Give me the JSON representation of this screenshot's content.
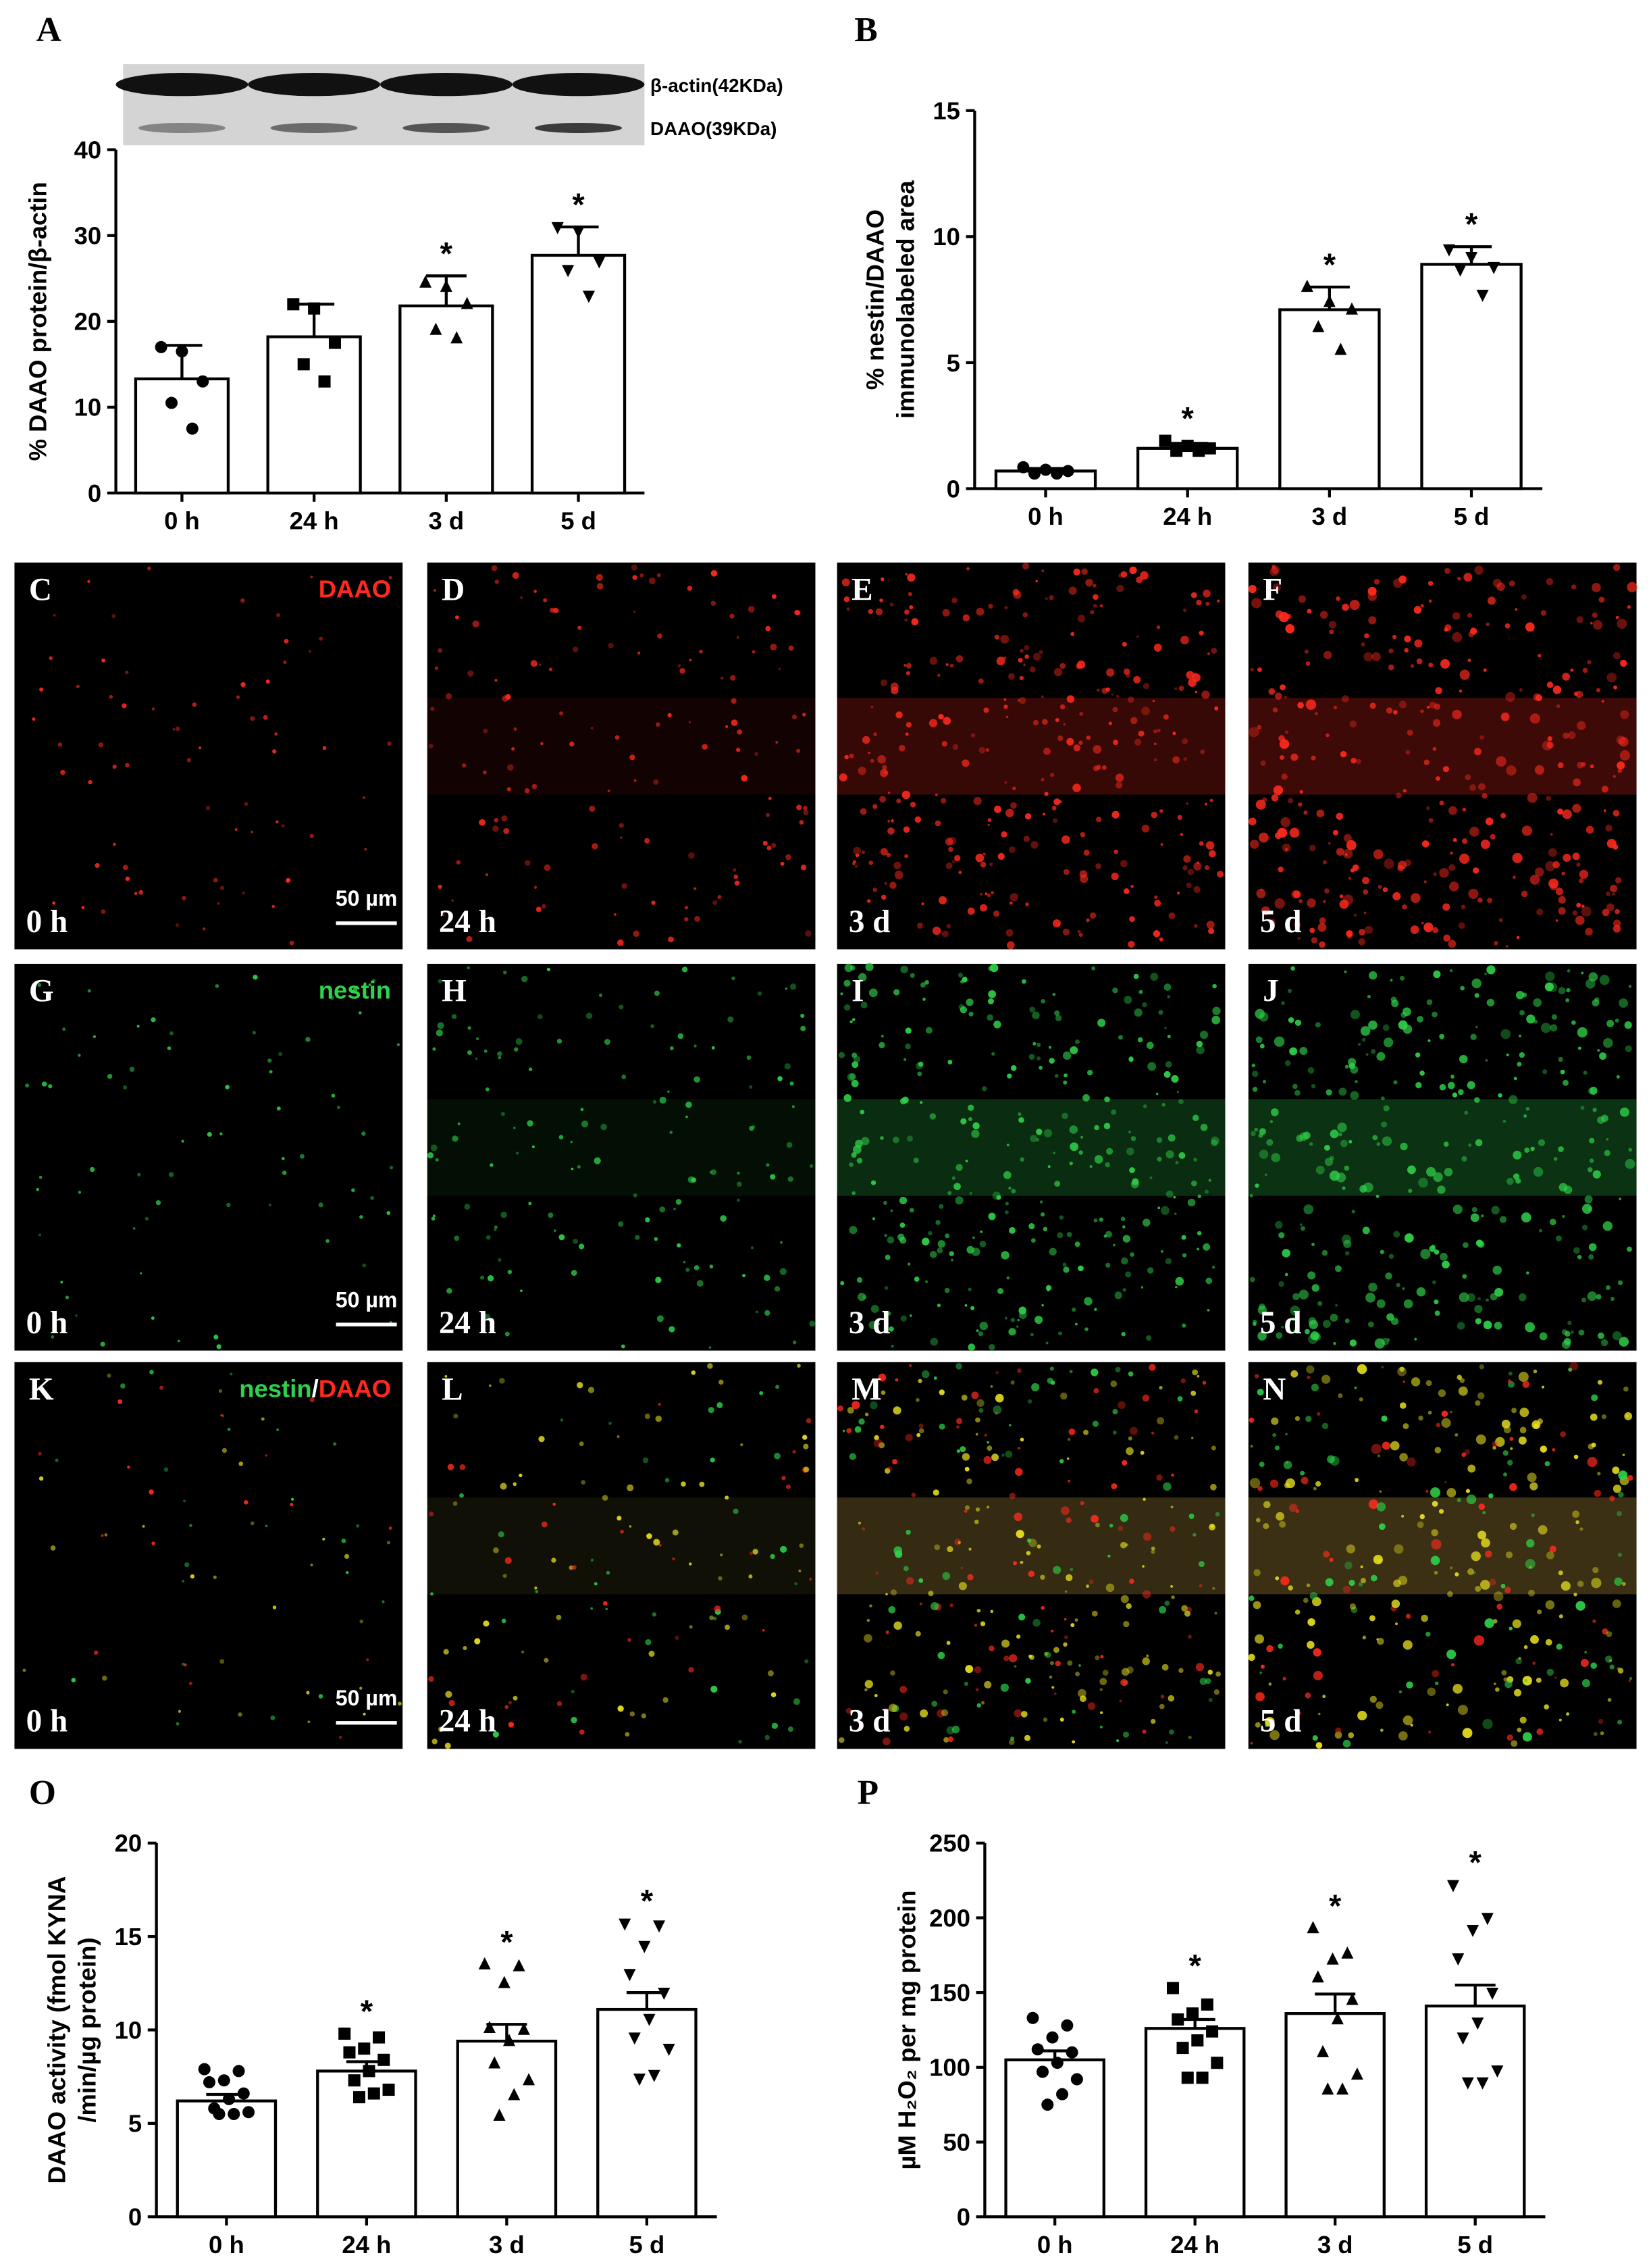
{
  "chart_data": [
    {
      "type": "bar",
      "panel": "A",
      "y_label": [
        "% DAAO protein/β-actin"
      ],
      "blot_labels": [
        "β-actin(42KDa)",
        "DAAO(39KDa)"
      ],
      "categories": [
        "0 h",
        "24 h",
        "3 d",
        "5 d"
      ],
      "values": [
        13.3,
        18.2,
        21.8,
        27.7
      ],
      "errors": [
        3.9,
        3.8,
        3.5,
        3.3
      ],
      "markers": [
        "circle",
        "square",
        "triangle-up",
        "triangle-down"
      ],
      "points": [
        [
          17,
          16.5,
          13,
          10.5,
          7.5
        ],
        [
          22,
          21.5,
          17.5,
          15,
          13
        ],
        [
          24.5,
          24,
          22,
          19,
          18
        ],
        [
          31,
          30.5,
          27,
          26,
          23
        ]
      ],
      "significance": [
        null,
        null,
        "*",
        "*"
      ],
      "ylim": [
        0,
        40
      ],
      "yticks": [
        0,
        10,
        20,
        30,
        40
      ]
    },
    {
      "type": "bar",
      "panel": "B",
      "y_label": [
        "% nestin/DAAO",
        "immunolabeled area"
      ],
      "categories": [
        "0 h",
        "24 h",
        "3 d",
        "5 d"
      ],
      "values": [
        0.7,
        1.6,
        7.1,
        8.9
      ],
      "errors": [
        0.1,
        0.2,
        0.9,
        0.7
      ],
      "markers": [
        "circle",
        "square",
        "triangle-up",
        "triangle-down"
      ],
      "points": [
        [
          0.85,
          0.75,
          0.7,
          0.6,
          0.6
        ],
        [
          1.9,
          1.7,
          1.6,
          1.5,
          1.5
        ],
        [
          8,
          7.4,
          7.1,
          6.4,
          5.5
        ],
        [
          9.5,
          9.2,
          8.8,
          8.7,
          7.7
        ]
      ],
      "significance": [
        null,
        "*",
        "*",
        "*"
      ],
      "ylim": [
        0,
        15
      ],
      "yticks": [
        0,
        5,
        10,
        15
      ]
    },
    {
      "type": "bar",
      "panel": "O",
      "y_label": [
        "DAAO activity (fmol KYNA",
        "/min/µg protein)"
      ],
      "categories": [
        "0 h",
        "24 h",
        "3 d",
        "5 d"
      ],
      "values": [
        6.2,
        7.8,
        9.4,
        11.1
      ],
      "errors": [
        0.35,
        0.5,
        0.9,
        0.9
      ],
      "markers": [
        "circle",
        "square",
        "triangle-up",
        "triangle-down"
      ],
      "points": [
        [
          7.9,
          7.8,
          7.3,
          7.2,
          6.6,
          6.3,
          5.8,
          5.6,
          5.5,
          5.5
        ],
        [
          9.8,
          9.6,
          9.0,
          8.8,
          8.4,
          7.8,
          7.3,
          6.8,
          6.6,
          6.4
        ],
        [
          13.5,
          13.4,
          12.5,
          10.1,
          10,
          9.4,
          8.2,
          7.3,
          6.5,
          5.4
        ],
        [
          15.7,
          15.6,
          14.5,
          13,
          12,
          10.6,
          9.6,
          9,
          7.6,
          7.4
        ]
      ],
      "significance": [
        null,
        "*",
        "*",
        "*"
      ],
      "ylim": [
        0,
        20
      ],
      "yticks": [
        0,
        5,
        10,
        15,
        20
      ]
    },
    {
      "type": "bar",
      "panel": "P",
      "y_label": [
        "µM H₂O₂ per mg protein"
      ],
      "categories": [
        "0 h",
        "24 h",
        "3 d",
        "5 d"
      ],
      "values": [
        105,
        126,
        136,
        141
      ],
      "errors": [
        6,
        6,
        13,
        14
      ],
      "markers": [
        "circle",
        "square",
        "triangle-up",
        "triangle-down"
      ],
      "points": [
        [
          133,
          128,
          120,
          112,
          110,
          103,
          97,
          92,
          82,
          75
        ],
        [
          153,
          142,
          136,
          132,
          124,
          118,
          113,
          103,
          93,
          93
        ],
        [
          193,
          176,
          172,
          160,
          145,
          132,
          110,
          95,
          85,
          85
        ],
        [
          222,
          200,
          192,
          173,
          150,
          130,
          120,
          98,
          90,
          90
        ]
      ],
      "significance": [
        null,
        "*",
        "*",
        "*"
      ],
      "ylim": [
        0,
        250
      ],
      "yticks": [
        0,
        50,
        100,
        150,
        200,
        250
      ]
    }
  ],
  "micrographs": {
    "rows": [
      {
        "stain": [
          {
            "text": "DAAO",
            "color": "#ff2a1e"
          }
        ],
        "panels": [
          {
            "letter": "C",
            "time": "0 h",
            "scale_bar": "50 µm"
          },
          {
            "letter": "D",
            "time": "24 h"
          },
          {
            "letter": "E",
            "time": "3 d"
          },
          {
            "letter": "F",
            "time": "5 d"
          }
        ]
      },
      {
        "stain": [
          {
            "text": "nestin",
            "color": "#2fd24a"
          }
        ],
        "panels": [
          {
            "letter": "G",
            "time": "0 h",
            "scale_bar": "50 µm"
          },
          {
            "letter": "H",
            "time": "24 h"
          },
          {
            "letter": "I",
            "time": "3 d"
          },
          {
            "letter": "J",
            "time": "5 d"
          }
        ]
      },
      {
        "stain": [
          {
            "text": "nestin",
            "color": "#2fd24a"
          },
          {
            "text": "/",
            "color": "#ffffff"
          },
          {
            "text": "DAAO",
            "color": "#ff2a1e"
          }
        ],
        "panels": [
          {
            "letter": "K",
            "time": "0 h",
            "scale_bar": "50 µm"
          },
          {
            "letter": "L",
            "time": "24 h"
          },
          {
            "letter": "M",
            "time": "3 d"
          },
          {
            "letter": "N",
            "time": "5 d"
          }
        ]
      }
    ]
  }
}
